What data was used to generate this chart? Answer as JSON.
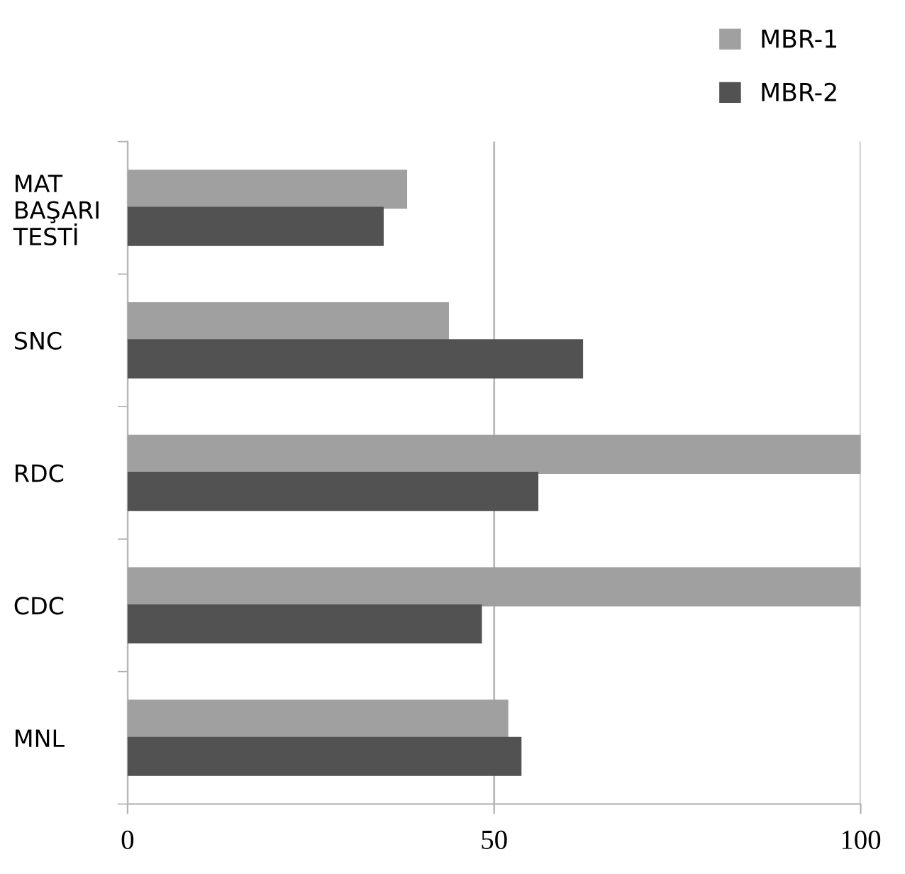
{
  "chart_data": {
    "type": "bar",
    "orientation": "horizontal",
    "categories": [
      "MAT\nBAŞARI\nTESTİ",
      "SNC",
      "RDC",
      "CDC",
      "MNL"
    ],
    "series": [
      {
        "name": "MBR-1",
        "color": "#a0a0a0",
        "values": [
          38,
          43.7,
          100,
          100,
          51.8
        ]
      },
      {
        "name": "MBR-2",
        "color": "#525252",
        "values": [
          34.8,
          62,
          55.9,
          48.2,
          53.6
        ]
      }
    ],
    "xlim": [
      0,
      100
    ],
    "xticks": [
      0,
      50,
      100
    ],
    "grid": "x",
    "legend": "top right"
  }
}
